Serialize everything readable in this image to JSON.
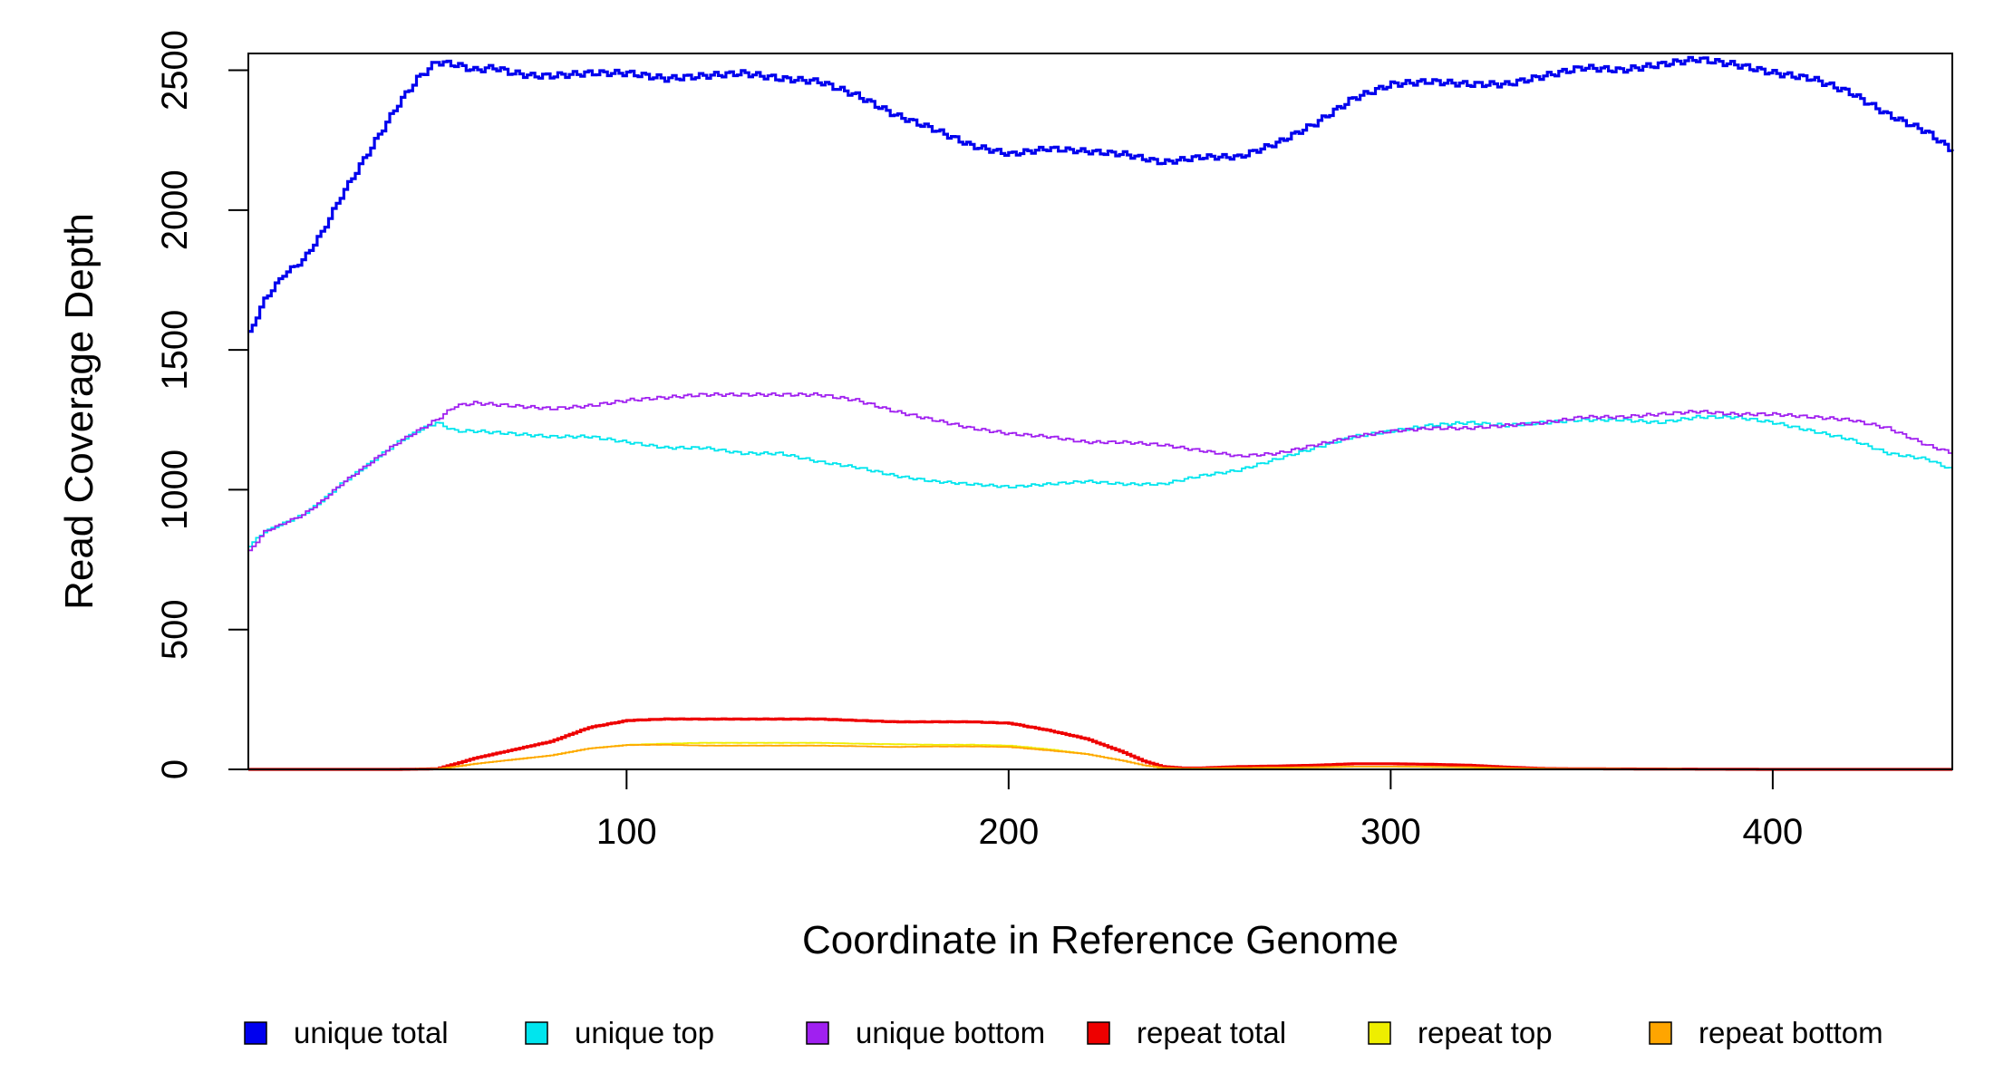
{
  "chart_data": {
    "type": "line",
    "xlabel": "Coordinate in Reference Genome",
    "ylabel": "Read Coverage Depth",
    "xlim": [
      1,
      447
    ],
    "ylim": [
      0,
      2560
    ],
    "x_ticks": [
      100,
      200,
      300,
      400
    ],
    "y_ticks": [
      0,
      500,
      1000,
      1500,
      2000,
      2500
    ],
    "grid": false,
    "legend_placement": "bottom",
    "legend": [
      {
        "label": "unique total",
        "color": "#0000ee"
      },
      {
        "label": "unique top",
        "color": "#00e5ee"
      },
      {
        "label": "unique bottom",
        "color": "#a020f0"
      },
      {
        "label": "repeat total",
        "color": "#ee0000"
      },
      {
        "label": "repeat top",
        "color": "#eeee00"
      },
      {
        "label": "repeat bottom",
        "color": "#ffa500"
      }
    ],
    "series": [
      {
        "name": "unique total",
        "color": "#0000ee",
        "x": [
          1,
          5,
          10,
          15,
          20,
          25,
          30,
          35,
          40,
          45,
          50,
          55,
          60,
          65,
          70,
          75,
          80,
          90,
          100,
          110,
          120,
          130,
          140,
          150,
          160,
          170,
          180,
          190,
          200,
          210,
          220,
          230,
          240,
          250,
          260,
          270,
          280,
          290,
          300,
          310,
          320,
          330,
          340,
          350,
          360,
          370,
          380,
          390,
          400,
          410,
          420,
          430,
          440,
          447
        ],
        "y": [
          1560,
          1680,
          1770,
          1820,
          1920,
          2050,
          2160,
          2270,
          2380,
          2470,
          2530,
          2520,
          2500,
          2510,
          2490,
          2480,
          2480,
          2490,
          2490,
          2470,
          2480,
          2490,
          2470,
          2460,
          2410,
          2340,
          2290,
          2230,
          2200,
          2220,
          2210,
          2200,
          2170,
          2190,
          2190,
          2240,
          2310,
          2400,
          2450,
          2460,
          2450,
          2450,
          2480,
          2510,
          2500,
          2520,
          2540,
          2520,
          2490,
          2470,
          2420,
          2340,
          2280,
          2210
        ]
      },
      {
        "name": "unique top",
        "color": "#00e5ee",
        "x": [
          1,
          5,
          10,
          15,
          20,
          25,
          30,
          35,
          40,
          45,
          50,
          55,
          60,
          70,
          80,
          90,
          100,
          110,
          120,
          130,
          140,
          150,
          160,
          170,
          180,
          190,
          200,
          210,
          220,
          230,
          240,
          250,
          260,
          270,
          280,
          290,
          300,
          310,
          320,
          330,
          340,
          350,
          360,
          370,
          380,
          390,
          400,
          410,
          420,
          430,
          440,
          447
        ],
        "y": [
          800,
          850,
          880,
          910,
          960,
          1020,
          1070,
          1120,
          1170,
          1210,
          1240,
          1210,
          1210,
          1200,
          1190,
          1190,
          1170,
          1150,
          1150,
          1130,
          1130,
          1100,
          1080,
          1050,
          1030,
          1020,
          1010,
          1020,
          1030,
          1020,
          1020,
          1050,
          1070,
          1110,
          1150,
          1190,
          1210,
          1230,
          1240,
          1230,
          1240,
          1250,
          1250,
          1240,
          1260,
          1260,
          1240,
          1210,
          1180,
          1130,
          1110,
          1070
        ]
      },
      {
        "name": "unique bottom",
        "color": "#a020f0",
        "x": [
          1,
          5,
          10,
          15,
          20,
          25,
          30,
          35,
          40,
          45,
          50,
          55,
          60,
          70,
          80,
          90,
          100,
          110,
          120,
          130,
          140,
          150,
          160,
          170,
          180,
          190,
          200,
          210,
          220,
          230,
          240,
          250,
          260,
          270,
          280,
          290,
          300,
          310,
          320,
          330,
          340,
          350,
          360,
          370,
          380,
          390,
          400,
          410,
          420,
          430,
          440,
          447
        ],
        "y": [
          780,
          850,
          880,
          910,
          960,
          1020,
          1070,
          1120,
          1170,
          1210,
          1250,
          1300,
          1310,
          1300,
          1290,
          1300,
          1320,
          1330,
          1340,
          1340,
          1340,
          1340,
          1320,
          1280,
          1250,
          1220,
          1200,
          1190,
          1170,
          1170,
          1160,
          1140,
          1120,
          1130,
          1160,
          1190,
          1210,
          1220,
          1220,
          1230,
          1240,
          1260,
          1260,
          1270,
          1280,
          1270,
          1270,
          1260,
          1250,
          1220,
          1160,
          1130
        ]
      },
      {
        "name": "repeat total",
        "color": "#ee0000",
        "x": [
          1,
          40,
          50,
          55,
          60,
          70,
          80,
          90,
          100,
          110,
          120,
          130,
          140,
          150,
          160,
          170,
          180,
          190,
          200,
          210,
          220,
          230,
          235,
          240,
          245,
          250,
          260,
          270,
          280,
          290,
          300,
          310,
          320,
          330,
          340,
          350,
          400,
          447
        ],
        "y": [
          0,
          0,
          2,
          20,
          40,
          70,
          100,
          150,
          175,
          180,
          180,
          180,
          180,
          180,
          175,
          170,
          170,
          170,
          165,
          140,
          110,
          60,
          30,
          10,
          5,
          5,
          10,
          12,
          15,
          20,
          20,
          18,
          15,
          8,
          3,
          2,
          0,
          0
        ]
      },
      {
        "name": "repeat top",
        "color": "#eeee00",
        "x": [
          1,
          40,
          50,
          55,
          60,
          70,
          80,
          90,
          100,
          110,
          120,
          130,
          140,
          150,
          160,
          170,
          180,
          190,
          200,
          210,
          220,
          230,
          235,
          240,
          245,
          250,
          260,
          270,
          280,
          290,
          300,
          310,
          320,
          330,
          340,
          350,
          400,
          447
        ],
        "y": [
          0,
          0,
          1,
          10,
          20,
          35,
          50,
          75,
          88,
          92,
          95,
          95,
          95,
          95,
          92,
          90,
          88,
          88,
          85,
          72,
          55,
          30,
          15,
          5,
          2,
          3,
          5,
          6,
          8,
          10,
          10,
          9,
          7,
          4,
          2,
          1,
          0,
          0
        ]
      },
      {
        "name": "repeat bottom",
        "color": "#ffa500",
        "x": [
          1,
          40,
          50,
          55,
          60,
          70,
          80,
          90,
          100,
          110,
          120,
          130,
          140,
          150,
          160,
          170,
          180,
          190,
          200,
          210,
          220,
          230,
          235,
          240,
          245,
          250,
          260,
          270,
          280,
          290,
          300,
          310,
          320,
          330,
          340,
          350,
          400,
          447
        ],
        "y": [
          0,
          0,
          1,
          10,
          20,
          35,
          50,
          75,
          87,
          88,
          85,
          85,
          85,
          85,
          83,
          80,
          82,
          82,
          80,
          68,
          55,
          30,
          15,
          5,
          3,
          2,
          5,
          6,
          7,
          10,
          10,
          9,
          8,
          4,
          1,
          1,
          0,
          0
        ]
      }
    ]
  }
}
